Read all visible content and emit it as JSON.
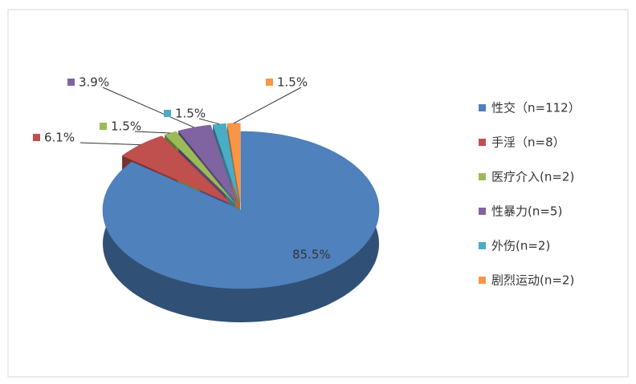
{
  "chart_data": {
    "type": "pie",
    "categories": [
      "性交（n=112）",
      "手淫（n=8）",
      "医疗介入(n=2)",
      "性暴力(n=5)",
      "外伤(n=2)",
      "剧烈运动(n=2)"
    ],
    "values": [
      85.5,
      6.1,
      1.5,
      3.9,
      1.5,
      1.5
    ],
    "value_labels": [
      "85.5%",
      "6.1%",
      "1.5%",
      "3.9%",
      "1.5%",
      "1.5%"
    ],
    "colors": [
      "#4f81bd",
      "#c0504d",
      "#9bbb59",
      "#8064a2",
      "#4bacc6",
      "#f79646"
    ],
    "legend": "right"
  }
}
